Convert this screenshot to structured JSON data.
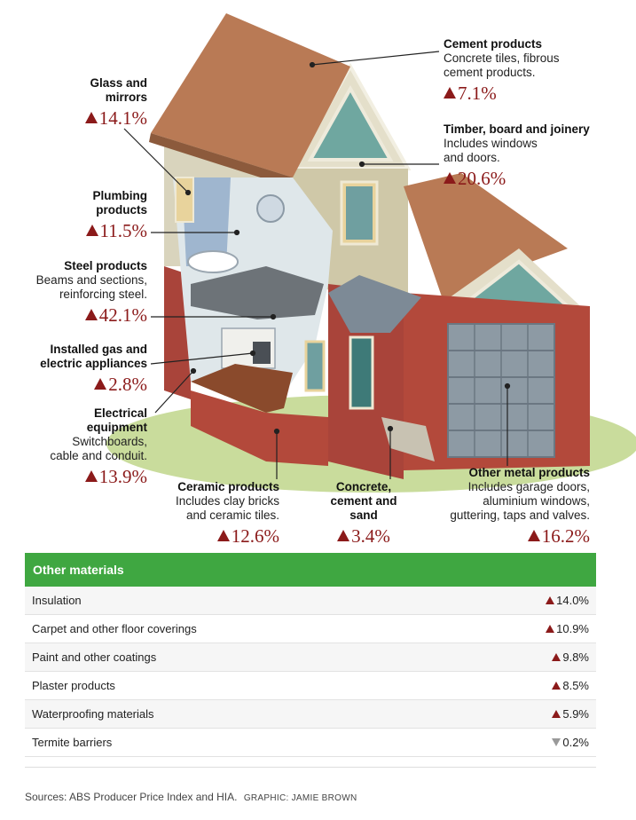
{
  "labels": [
    {
      "id": "cement",
      "title": "Cement products",
      "desc": [
        "Concrete tiles, fibrous",
        "cement products."
      ],
      "value": "7.1%"
    },
    {
      "id": "glass",
      "title": "Glass and mirrors",
      "desc": [],
      "value": "14.1%"
    },
    {
      "id": "timber",
      "title": "Timber, board and joinery",
      "desc": [
        "Includes windows",
        "and doors."
      ],
      "value": "20.6%"
    },
    {
      "id": "plumbing",
      "title": "Plumbing products",
      "desc": [],
      "value": "11.5%"
    },
    {
      "id": "steel",
      "title": "Steel products",
      "desc": [
        "Beams and sections,",
        "reinforcing steel."
      ],
      "value": "42.1%"
    },
    {
      "id": "gas",
      "title": "Installed gas and electric appliances",
      "desc": [],
      "value": "2.8%"
    },
    {
      "id": "electrical",
      "title": "Electrical equipment",
      "desc": [
        "Switchboards,",
        "cable and conduit."
      ],
      "value": "13.9%"
    },
    {
      "id": "ceramic",
      "title": "Ceramic products",
      "desc": [
        "Includes clay bricks",
        "and ceramic tiles."
      ],
      "value": "12.6%"
    },
    {
      "id": "concrete",
      "title": "Concrete, cement and sand",
      "desc": [],
      "value": "3.4%"
    },
    {
      "id": "metal",
      "title": "Other metal products",
      "desc": [
        "Includes garage doors,",
        "aluminium windows,",
        "guttering, taps and valves."
      ],
      "value": "16.2%"
    }
  ],
  "table": {
    "header": "Other materials",
    "rows": [
      {
        "name": "Insulation",
        "value": "14.0%",
        "direction": "up"
      },
      {
        "name": "Carpet and other floor coverings",
        "value": "10.9%",
        "direction": "up"
      },
      {
        "name": "Paint and other coatings",
        "value": "9.8%",
        "direction": "up"
      },
      {
        "name": "Plaster products",
        "value": "8.5%",
        "direction": "up"
      },
      {
        "name": "Waterproofing materials",
        "value": "5.9%",
        "direction": "up"
      },
      {
        "name": "Termite barriers",
        "value": "0.2%",
        "direction": "down"
      }
    ]
  },
  "footer": {
    "sources": "Sources: ABS Producer Price Index and HIA.",
    "graphic": "GRAPHIC: JAMIE BROWN"
  },
  "colors": {
    "accent_green": "#3fa741",
    "increase_red": "#8b1a1a",
    "decrease_grey": "#999999"
  }
}
